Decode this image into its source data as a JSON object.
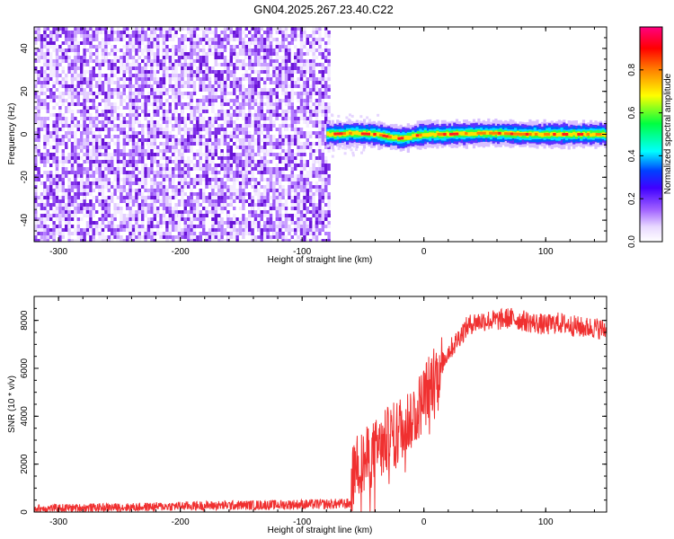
{
  "title": "GN04.2025.267.23.40.C22",
  "chart_data": [
    {
      "type": "heatmap",
      "xlabel": "Height of straight line (km)",
      "ylabel": "Frequency (Hz)",
      "xlim": [
        -320,
        150
      ],
      "ylim": [
        -50,
        50
      ],
      "xticks": [
        -300,
        -200,
        -100,
        0,
        100
      ],
      "yticks": [
        -40,
        -20,
        0,
        20,
        40
      ],
      "colorbar": {
        "label": "Normalized spectral amplitude",
        "ticks": [
          "0.0",
          "0.2",
          "0.4",
          "0.6",
          "0.8"
        ],
        "tick_values": [
          0.0,
          0.2,
          0.4,
          0.6,
          0.8
        ],
        "range": [
          0,
          1
        ],
        "colormap": [
          "#ffffff",
          "#e0c8ff",
          "#8a2be2",
          "#0000ff",
          "#00ffff",
          "#00ff00",
          "#ffff00",
          "#ff8000",
          "#ff0000",
          "#ff00ff"
        ]
      },
      "noise_region_x": [
        -320,
        -78
      ],
      "signal_ridge": {
        "x": [
          -80,
          -60,
          -40,
          -20,
          0,
          20,
          40,
          60,
          80,
          100,
          120,
          150
        ],
        "y": [
          0,
          0.5,
          0,
          -2,
          0,
          0,
          0.5,
          0.5,
          0,
          0,
          0,
          0
        ]
      }
    },
    {
      "type": "line",
      "xlabel": "Height of straight line (km)",
      "ylabel": "SNR (10 * v/v)",
      "xlim": [
        -320,
        150
      ],
      "ylim": [
        0,
        9000
      ],
      "xticks": [
        -300,
        -200,
        -100,
        0,
        100
      ],
      "yticks": [
        0,
        2000,
        4000,
        6000,
        8000
      ],
      "color": "#f03030",
      "series": [
        {
          "x": [
            -320,
            -280,
            -240,
            -200,
            -160,
            -120,
            -100,
            -80,
            -60,
            -58,
            -55,
            -50,
            -45,
            -40,
            -35,
            -30,
            -25,
            -20,
            -15,
            -10,
            -5,
            0,
            5,
            10,
            15,
            20,
            25,
            30,
            35,
            40,
            50,
            60,
            70,
            80,
            90,
            100,
            110,
            120,
            130,
            140,
            150
          ],
          "y": [
            150,
            180,
            200,
            250,
            280,
            300,
            320,
            330,
            350,
            1500,
            1900,
            2000,
            2300,
            2500,
            2700,
            3000,
            3200,
            3500,
            3700,
            4000,
            4300,
            4800,
            5300,
            5800,
            6200,
            6700,
            7000,
            7400,
            7700,
            7900,
            8000,
            8000,
            8100,
            8000,
            7900,
            7800,
            7900,
            7800,
            7700,
            7700,
            7600
          ]
        }
      ]
    }
  ]
}
